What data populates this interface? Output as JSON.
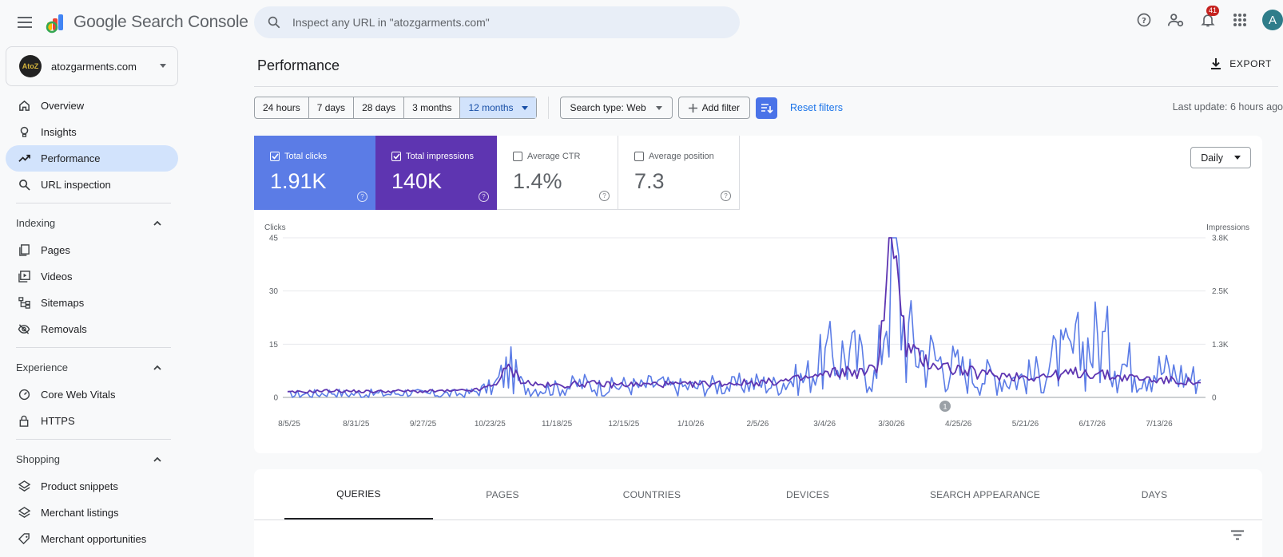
{
  "app": {
    "logo_text": "Google Search Console",
    "menu_icon": "hamburger-menu-icon"
  },
  "search": {
    "placeholder": "Inspect any URL in \"atozgarments.com\""
  },
  "topbar": {
    "notification_count": "41",
    "avatar_letter": "A"
  },
  "property": {
    "name": "atozgarments.com",
    "logo_text": "AtoZ"
  },
  "sidebar": {
    "main_items": [
      {
        "label": "Overview",
        "icon": "home-icon"
      },
      {
        "label": "Insights",
        "icon": "lightbulb-icon"
      },
      {
        "label": "Performance",
        "icon": "trending-up-icon",
        "active": true
      },
      {
        "label": "URL inspection",
        "icon": "search-icon"
      }
    ],
    "indexing": {
      "title": "Indexing",
      "items": [
        {
          "label": "Pages",
          "icon": "pages-icon"
        },
        {
          "label": "Videos",
          "icon": "video-icon"
        },
        {
          "label": "Sitemaps",
          "icon": "sitemap-icon"
        },
        {
          "label": "Removals",
          "icon": "eye-off-icon"
        }
      ]
    },
    "experience": {
      "title": "Experience",
      "items": [
        {
          "label": "Core Web Vitals",
          "icon": "speed-icon"
        },
        {
          "label": "HTTPS",
          "icon": "lock-icon"
        }
      ]
    },
    "shopping": {
      "title": "Shopping",
      "items": [
        {
          "label": "Product snippets",
          "icon": "layers-icon"
        },
        {
          "label": "Merchant listings",
          "icon": "layers-icon"
        },
        {
          "label": "Merchant opportunities",
          "icon": "tag-icon"
        }
      ]
    }
  },
  "main": {
    "title": "Performance",
    "export_label": "EXPORT",
    "date_ranges": [
      "24 hours",
      "7 days",
      "28 days",
      "3 months",
      "12 months"
    ],
    "selected_range": "12 months",
    "search_type": "Search type: Web",
    "add_filter": "Add filter",
    "reset_filters": "Reset filters",
    "last_update": "Last update: 6 hours ago",
    "granularity": "Daily",
    "metrics": [
      {
        "label": "Total clicks",
        "value": "1.91K",
        "checked": true,
        "color": "#5b7ce6"
      },
      {
        "label": "Total impressions",
        "value": "140K",
        "checked": true,
        "color": "#5e35b1"
      },
      {
        "label": "Average CTR",
        "value": "1.4%",
        "checked": false
      },
      {
        "label": "Average position",
        "value": "7.3",
        "checked": false
      }
    ],
    "tabs": [
      "QUERIES",
      "PAGES",
      "COUNTRIES",
      "DEVICES",
      "SEARCH APPEARANCE",
      "DAYS"
    ],
    "active_tab": "QUERIES"
  },
  "chart_data": {
    "type": "line",
    "left_axis_label": "Clicks",
    "right_axis_label": "Impressions",
    "left_ticks": [
      "0",
      "15",
      "30",
      "45"
    ],
    "left_ylim": [
      0,
      45
    ],
    "right_ticks": [
      "0",
      "1.3K",
      "2.5K",
      "3.8K"
    ],
    "right_ylim": [
      0,
      3800
    ],
    "x_tick_labels": [
      "8/5/25",
      "8/31/25",
      "9/27/25",
      "10/23/25",
      "11/18/25",
      "12/15/25",
      "1/10/26",
      "2/5/26",
      "3/4/26",
      "3/30/26",
      "4/25/26",
      "5/21/26",
      "6/17/26",
      "7/13/26"
    ],
    "annotation_label": "1",
    "grid": true,
    "series": [
      {
        "name": "Clicks",
        "axis": "left",
        "color": "#5b7ce6",
        "weekly_values": [
          0.5,
          1,
          1,
          1.5,
          1,
          1,
          1,
          1,
          1.5,
          1,
          1,
          1,
          1,
          2,
          3,
          8.5,
          3,
          2.5,
          2.5,
          3,
          4,
          3,
          3,
          3.5,
          3,
          4,
          3,
          3,
          3,
          3.5,
          3,
          4,
          4,
          3.5,
          5,
          5,
          9,
          12,
          12,
          10,
          5,
          45,
          17,
          13,
          11,
          9,
          7,
          6,
          6,
          5.5,
          5.5,
          6.5,
          10,
          11,
          14,
          16,
          13,
          9,
          9,
          8,
          7,
          6,
          5
        ]
      },
      {
        "name": "Impressions",
        "axis": "right",
        "color": "#5e35b1",
        "weekly_values": [
          120,
          130,
          150,
          160,
          150,
          140,
          140,
          150,
          150,
          140,
          150,
          150,
          160,
          180,
          300,
          700,
          380,
          300,
          280,
          300,
          330,
          320,
          300,
          310,
          300,
          320,
          310,
          300,
          320,
          330,
          340,
          350,
          360,
          370,
          400,
          450,
          500,
          580,
          620,
          580,
          700,
          3800,
          1200,
          900,
          800,
          700,
          620,
          560,
          540,
          520,
          500,
          500,
          520,
          560,
          600,
          560,
          500,
          480,
          450,
          420,
          400,
          380,
          350
        ]
      }
    ]
  }
}
